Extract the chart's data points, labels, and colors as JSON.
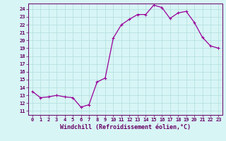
{
  "x": [
    0,
    1,
    2,
    3,
    4,
    5,
    6,
    7,
    8,
    9,
    10,
    11,
    12,
    13,
    14,
    15,
    16,
    17,
    18,
    19,
    20,
    21,
    22,
    23
  ],
  "y": [
    13.5,
    12.7,
    12.8,
    13.0,
    12.8,
    12.7,
    11.5,
    11.8,
    14.7,
    15.2,
    20.3,
    22.0,
    22.7,
    23.3,
    23.3,
    24.5,
    24.2,
    22.8,
    23.5,
    23.7,
    22.3,
    20.4,
    19.3,
    19.0
  ],
  "line_color": "#990099",
  "marker": "+",
  "marker_size": 3.5,
  "marker_lw": 0.8,
  "line_width": 0.9,
  "bg_color": "#d8f5f5",
  "grid_color": "#b0dede",
  "xlabel": "Windchill (Refroidissement éolien,°C)",
  "ylabel_ticks": [
    11,
    12,
    13,
    14,
    15,
    16,
    17,
    18,
    19,
    20,
    21,
    22,
    23,
    24
  ],
  "xlim": [
    -0.5,
    23.5
  ],
  "ylim": [
    10.5,
    24.7
  ],
  "axis_color": "#660066",
  "tick_color": "#660066",
  "label_color": "#660066",
  "tick_fontsize": 5.0,
  "xlabel_fontsize": 6.0
}
